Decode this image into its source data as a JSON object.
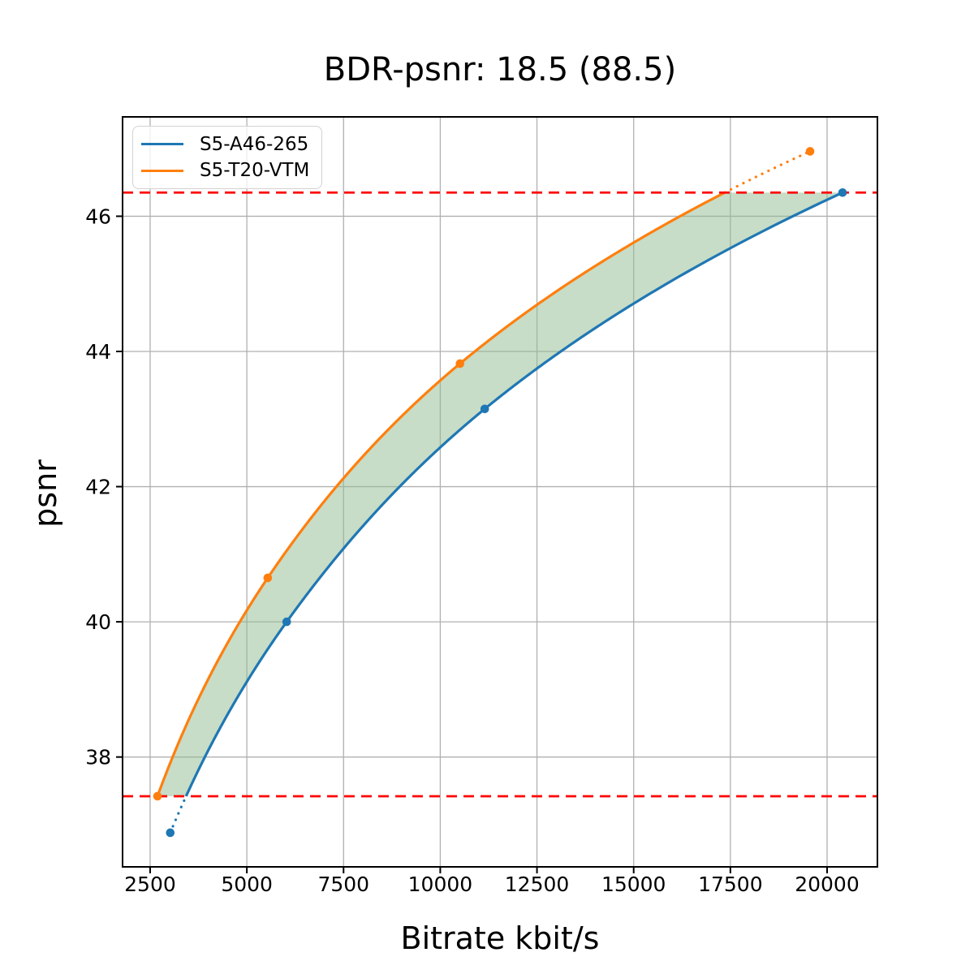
{
  "chart": {
    "title": "BDR-psnr: 18.5 (88.5)",
    "xlabel": "Bitrate kbit/s",
    "ylabel": "psnr"
  },
  "legend": {
    "items": [
      {
        "label": "S5-A46-265"
      },
      {
        "label": "S5-T20-VTM"
      }
    ]
  },
  "chart_data": {
    "type": "line",
    "title": "BDR-psnr: 18.5 (88.5)",
    "xlabel": "Bitrate kbit/s",
    "ylabel": "psnr",
    "xlim": [
      1787,
      21301
    ],
    "ylim": [
      36.375,
      47.47
    ],
    "xticks": [
      2500,
      5000,
      7500,
      10000,
      12500,
      15000,
      17500,
      20000
    ],
    "yticks": [
      38,
      40,
      42,
      44,
      46
    ],
    "grid": true,
    "grid_color": "#b0b0b0",
    "legend_position": "upper left",
    "interpolation": "pchip on log10(bitrate), dotted outside overlap range",
    "series": [
      {
        "name": "S5-A46-265",
        "color": "#1f77b4",
        "marker": "o",
        "x": [
          3020,
          6030,
          11150,
          20400
        ],
        "y": [
          36.88,
          40.0,
          43.15,
          46.35
        ]
      },
      {
        "name": "S5-T20-VTM",
        "color": "#ff7f0e",
        "marker": "o",
        "x": [
          2690,
          5540,
          10510,
          19560
        ],
        "y": [
          37.42,
          40.65,
          43.82,
          46.96
        ]
      }
    ],
    "overlap_hlines": {
      "color": "#ff0000",
      "style": "dashed",
      "y_low": 37.42,
      "y_high": 46.35
    },
    "band": {
      "color": "#8fbc8f",
      "opacity": 0.5,
      "description": "shaded area between the two rate-psnr curves inside the overlap psnr range"
    }
  }
}
